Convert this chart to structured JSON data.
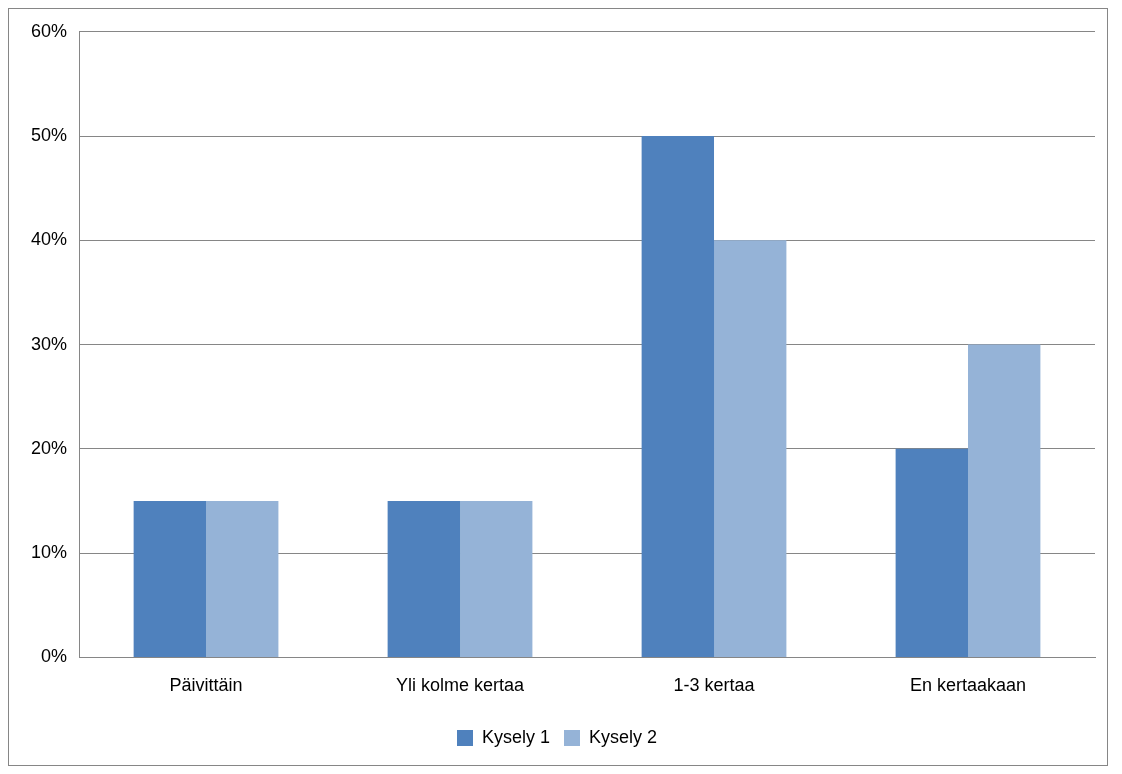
{
  "chart_data": {
    "type": "bar",
    "categories": [
      "Päivittäin",
      "Yli kolme kertaa",
      "1-3 kertaa",
      "En kertaakaan"
    ],
    "series": [
      {
        "name": "Kysely 1",
        "color": "#4f81bd",
        "values": [
          15,
          15,
          50,
          20
        ]
      },
      {
        "name": "Kysely 2",
        "color": "#95b3d7",
        "values": [
          15,
          15,
          40,
          30
        ]
      }
    ],
    "ylim": [
      0,
      60
    ],
    "yticks": [
      {
        "value": 0,
        "label": "0%"
      },
      {
        "value": 10,
        "label": "10%"
      },
      {
        "value": 20,
        "label": "20%"
      },
      {
        "value": 30,
        "label": "30%"
      },
      {
        "value": 40,
        "label": "40%"
      },
      {
        "value": 50,
        "label": "50%"
      },
      {
        "value": 60,
        "label": "60%"
      }
    ],
    "grid": "y",
    "legend": "bottom"
  }
}
